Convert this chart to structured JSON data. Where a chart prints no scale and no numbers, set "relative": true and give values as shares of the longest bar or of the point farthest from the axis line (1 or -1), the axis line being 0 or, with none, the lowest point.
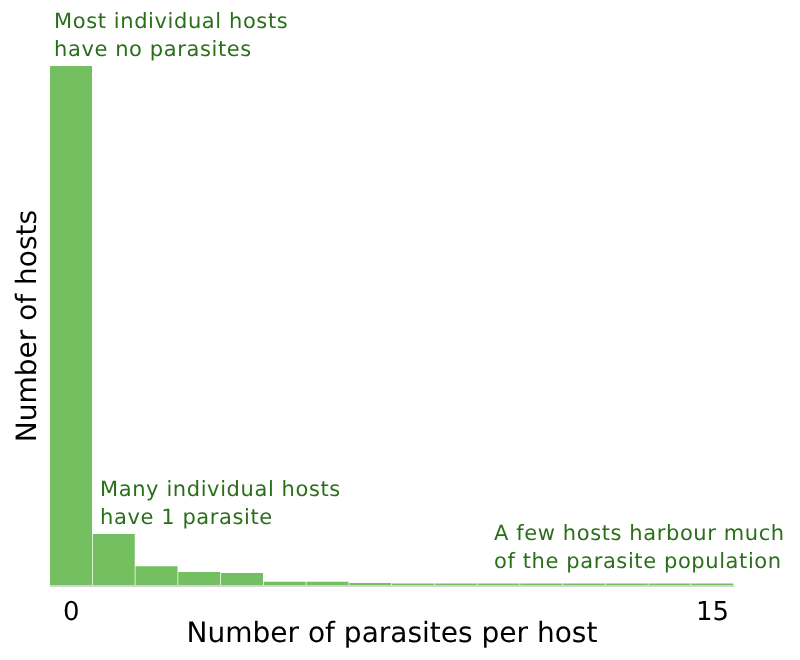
{
  "chart_data": {
    "type": "bar",
    "relative": true,
    "xlabel": "Number of parasites per host",
    "ylabel": "Number of hosts",
    "categories": [
      "0",
      null,
      null,
      null,
      null,
      null,
      null,
      null,
      null,
      null,
      null,
      null,
      null,
      null,
      null,
      "15"
    ],
    "values": [
      1,
      0.1,
      0.038,
      0.027,
      0.025,
      0.008,
      0.008,
      0.006,
      0.005,
      0.005,
      0.005,
      0.005,
      0.005,
      0.005,
      0.005,
      0.005
    ],
    "color": "#74bf5f",
    "annotations": [
      "Most individual hosts\nhave no parasites",
      "Many individual hosts\nhave 1 parasite",
      "A few hosts harbour much\nof the parasite population"
    ]
  }
}
